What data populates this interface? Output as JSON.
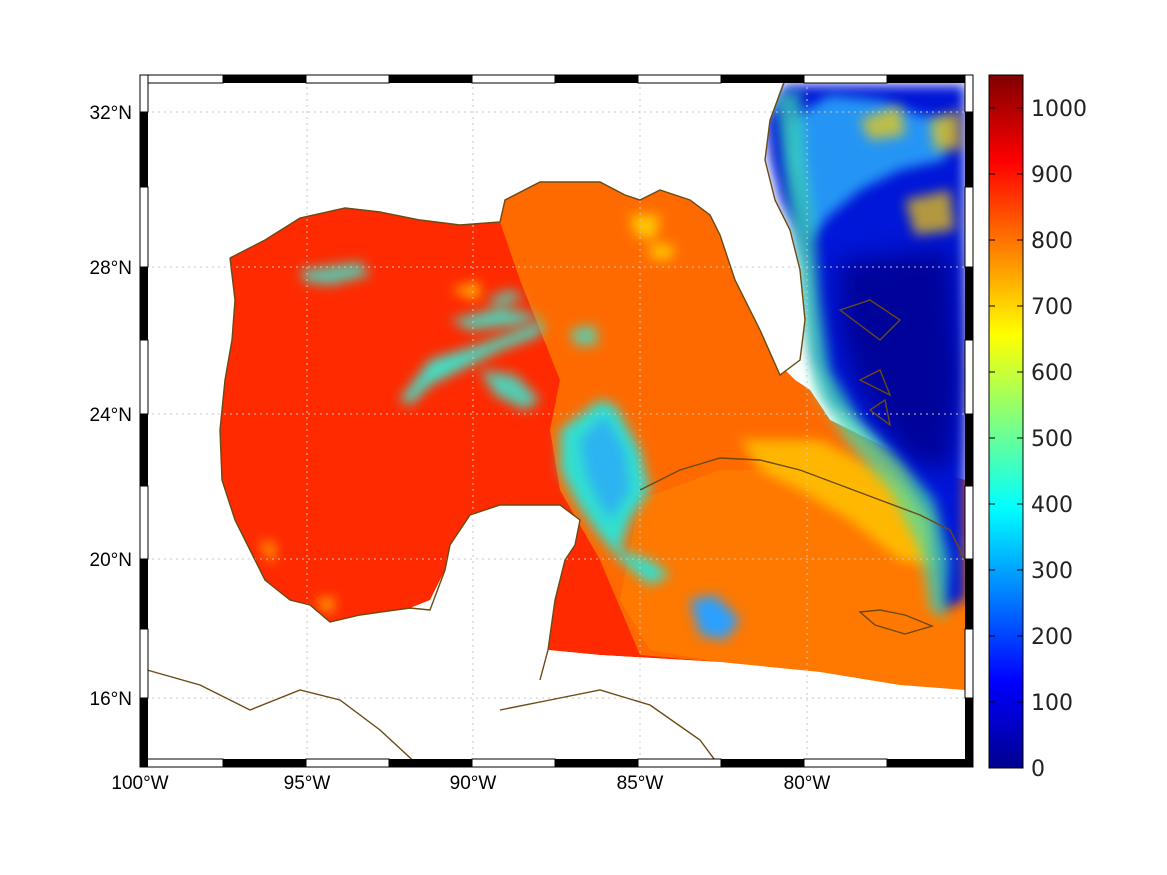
{
  "map": {
    "lon_range": [
      -100,
      -75
    ],
    "lat_range": [
      14.3,
      33
    ],
    "lon_ticks": [
      "100°W",
      "95°W",
      "90°W",
      "85°W",
      "80°W"
    ],
    "lat_ticks": [
      "32°N",
      "28°N",
      "24°N",
      "20°N",
      "16°N"
    ],
    "grid": true,
    "coastline_color": "#6b4a14",
    "frame_style": "alternating black/white border"
  },
  "colorbar": {
    "min": 0,
    "max": 1050,
    "ticks": [
      "0",
      "100",
      "200",
      "300",
      "400",
      "500",
      "600",
      "700",
      "800",
      "900",
      "1000"
    ],
    "colormap": "jet"
  }
}
